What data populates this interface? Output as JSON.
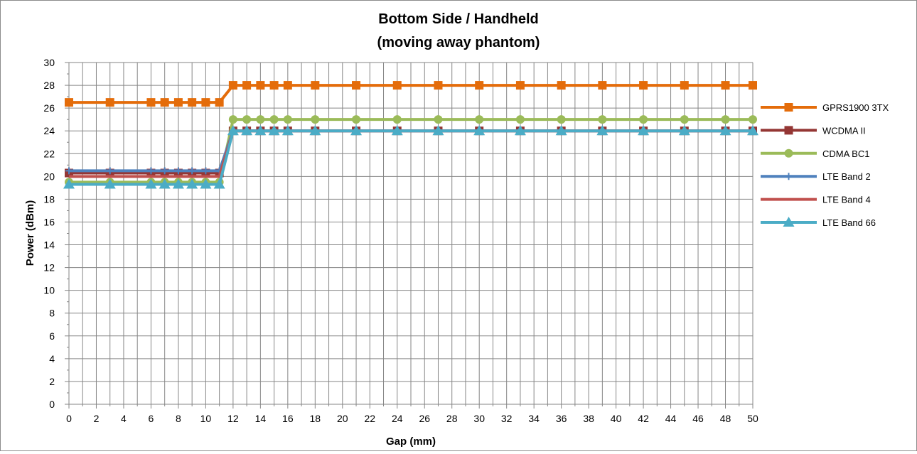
{
  "chart_data": {
    "type": "line",
    "title_lines": [
      "Bottom Side / Handheld",
      "(moving away phantom)"
    ],
    "xlabel": "Gap (mm)",
    "ylabel": "Power (dBm)",
    "xlim": [
      0,
      50
    ],
    "ylim": [
      0,
      30
    ],
    "x_ticks": [
      0,
      2,
      4,
      6,
      8,
      10,
      12,
      14,
      16,
      18,
      20,
      22,
      24,
      26,
      28,
      30,
      32,
      34,
      36,
      38,
      40,
      42,
      44,
      46,
      48,
      50
    ],
    "y_ticks": [
      0,
      2,
      4,
      6,
      8,
      10,
      12,
      14,
      16,
      18,
      20,
      22,
      24,
      26,
      28,
      30
    ],
    "grid": true,
    "legend_position": "right",
    "x": [
      0,
      3,
      6,
      7,
      8,
      9,
      10,
      11,
      12,
      13,
      14,
      15,
      16,
      18,
      21,
      24,
      27,
      30,
      33,
      36,
      39,
      42,
      45,
      48,
      50
    ],
    "series": [
      {
        "name": "GPRS1900 3TX",
        "color": "#E46C0A",
        "marker": "square",
        "values": [
          26.5,
          26.5,
          26.5,
          26.5,
          26.5,
          26.5,
          26.5,
          26.5,
          28,
          28,
          28,
          28,
          28,
          28,
          28,
          28,
          28,
          28,
          28,
          28,
          28,
          28,
          28,
          28,
          28
        ]
      },
      {
        "name": "WCDMA II",
        "color": "#943634",
        "marker": "square",
        "values": [
          20.3,
          20.3,
          20.3,
          20.3,
          20.3,
          20.3,
          20.3,
          20.3,
          24,
          24,
          24,
          24,
          24,
          24,
          24,
          24,
          24,
          24,
          24,
          24,
          24,
          24,
          24,
          24,
          24
        ]
      },
      {
        "name": "CDMA BC1",
        "color": "#9BBB59",
        "marker": "circle",
        "values": [
          19.5,
          19.5,
          19.5,
          19.5,
          19.5,
          19.5,
          19.5,
          19.5,
          25,
          25,
          25,
          25,
          25,
          25,
          25,
          25,
          25,
          25,
          25,
          25,
          25,
          25,
          25,
          25,
          25
        ]
      },
      {
        "name": "LTE Band 2",
        "color": "#4F81BD",
        "marker": "plus",
        "values": [
          20.5,
          20.5,
          20.5,
          20.5,
          20.5,
          20.5,
          20.5,
          20.5,
          24,
          24,
          24,
          24,
          24,
          24,
          24,
          24,
          24,
          24,
          24,
          24,
          24,
          24,
          24,
          24,
          24
        ]
      },
      {
        "name": "LTE Band 4",
        "color": "#C0504D",
        "marker": "none",
        "values": [
          20,
          20,
          20,
          20,
          20,
          20,
          20,
          20,
          24,
          24,
          24,
          24,
          24,
          24,
          24,
          24,
          24,
          24,
          24,
          24,
          24,
          24,
          24,
          24,
          24
        ]
      },
      {
        "name": "LTE Band 66",
        "color": "#4BACC6",
        "marker": "triangle",
        "values": [
          19.3,
          19.3,
          19.3,
          19.3,
          19.3,
          19.3,
          19.3,
          19.3,
          24,
          24,
          24,
          24,
          24,
          24,
          24,
          24,
          24,
          24,
          24,
          24,
          24,
          24,
          24,
          24,
          24
        ]
      }
    ]
  }
}
